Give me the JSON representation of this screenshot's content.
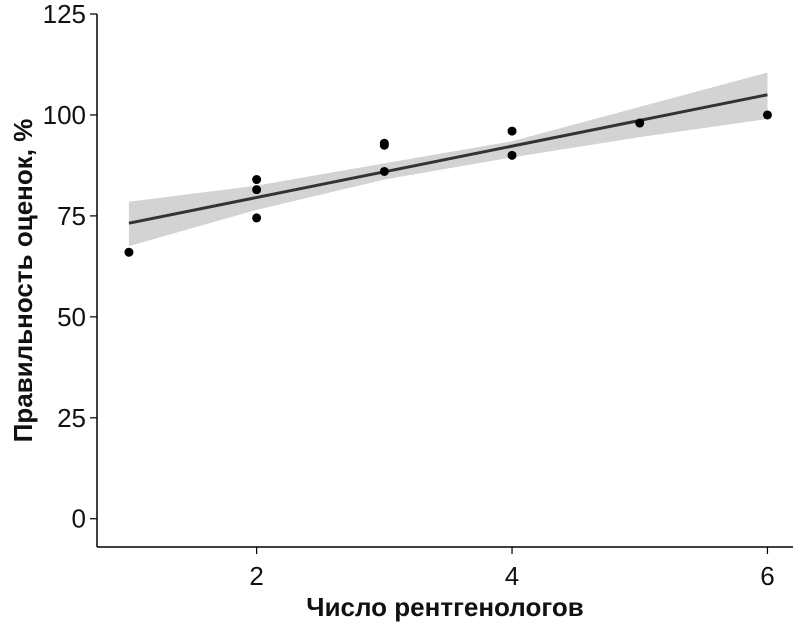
{
  "chart_data": {
    "type": "scatter",
    "title": "",
    "xlabel": "Число рентгенологов",
    "ylabel": "Правильность оценок, %",
    "xlim": [
      0.75,
      6.2
    ],
    "ylim": [
      -7,
      125
    ],
    "x_ticks": [
      2,
      4,
      6
    ],
    "y_ticks": [
      0,
      25,
      50,
      75,
      100,
      125
    ],
    "x_tick_labels": [
      "2",
      "4",
      "6"
    ],
    "y_tick_labels": [
      "0",
      "25",
      "50",
      "75",
      "100",
      "125"
    ],
    "grid": false,
    "legend": "none",
    "points": [
      {
        "x": 1,
        "y": 66
      },
      {
        "x": 2,
        "y": 84
      },
      {
        "x": 2,
        "y": 81.5
      },
      {
        "x": 2,
        "y": 74.5
      },
      {
        "x": 3,
        "y": 93
      },
      {
        "x": 3,
        "y": 92.5
      },
      {
        "x": 3,
        "y": 86
      },
      {
        "x": 4,
        "y": 96
      },
      {
        "x": 4,
        "y": 90
      },
      {
        "x": 5,
        "y": 98
      },
      {
        "x": 6,
        "y": 100
      }
    ],
    "trend_line": {
      "x": [
        1,
        6
      ],
      "y": [
        73.2,
        105
      ]
    },
    "confidence_band": {
      "x": [
        1,
        2,
        3,
        4,
        5,
        6
      ],
      "lower": [
        67.5,
        76.5,
        84,
        89.5,
        94.5,
        99
      ],
      "upper": [
        78.5,
        82.5,
        88,
        93.5,
        102,
        110.5
      ]
    },
    "colors": {
      "points": "#000000",
      "line": "#333333",
      "band": "#d3d3d3",
      "axis": "#000000"
    }
  }
}
